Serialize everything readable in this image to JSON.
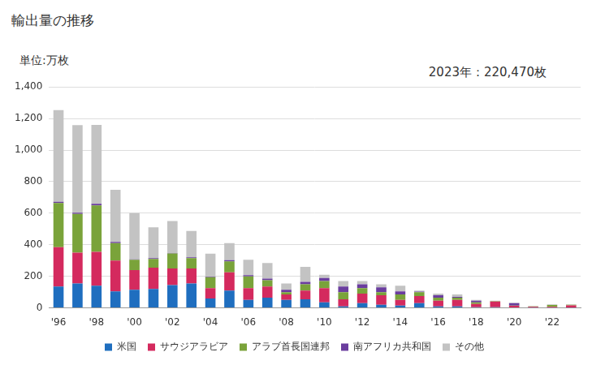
{
  "chart_data": {
    "type": "bar",
    "title": "輸出量の推移",
    "ylabel": "単位:万枚",
    "annotations": [
      "2023年：220,470枚"
    ],
    "categories": [
      "'96",
      null,
      "'98",
      null,
      "'00",
      null,
      "'02",
      null,
      "'04",
      null,
      "'06",
      null,
      "'08",
      null,
      "'10",
      null,
      "'12",
      null,
      "'14",
      null,
      "'16",
      null,
      "'18",
      null,
      "'20",
      null,
      "'22",
      null
    ],
    "series": [
      {
        "name": "米国",
        "color": "#1f6ebf",
        "values": [
          135,
          155,
          140,
          105,
          115,
          120,
          145,
          155,
          60,
          110,
          50,
          65,
          50,
          55,
          35,
          10,
          30,
          20,
          15,
          30,
          10,
          10,
          5,
          5,
          3,
          2,
          2,
          2
        ]
      },
      {
        "name": "サウジアラビア",
        "color": "#d42a5e",
        "values": [
          250,
          195,
          215,
          195,
          125,
          135,
          105,
          95,
          65,
          115,
          75,
          70,
          35,
          55,
          90,
          45,
          60,
          60,
          35,
          45,
          35,
          40,
          20,
          35,
          10,
          5,
          5,
          14
        ]
      },
      {
        "name": "アラブ首長国連邦",
        "color": "#7aa33a",
        "values": [
          280,
          245,
          295,
          110,
          65,
          55,
          95,
          65,
          70,
          70,
          75,
          40,
          15,
          40,
          45,
          45,
          35,
          20,
          35,
          25,
          20,
          15,
          10,
          3,
          2,
          3,
          12,
          4
        ]
      },
      {
        "name": "南アフリカ共和国",
        "color": "#6a3d9e",
        "values": [
          8,
          8,
          10,
          8,
          3,
          5,
          3,
          5,
          3,
          8,
          8,
          10,
          15,
          15,
          20,
          35,
          25,
          30,
          20,
          3,
          15,
          5,
          10,
          0,
          15,
          0,
          0,
          0
        ]
      },
      {
        "name": "その他",
        "color": "#c3c3c3",
        "values": [
          580,
          555,
          500,
          330,
          292,
          195,
          202,
          168,
          145,
          107,
          97,
          100,
          40,
          95,
          20,
          35,
          20,
          20,
          35,
          7,
          10,
          15,
          5,
          2,
          2,
          2,
          3,
          2
        ]
      }
    ],
    "ylim": [
      0,
      1400
    ],
    "yticks": [
      0,
      200,
      400,
      600,
      800,
      {
        "value": 1000,
        "label": "1,000"
      },
      {
        "value": 1200,
        "label": "1,200"
      },
      {
        "value": 1400,
        "label": "1,400"
      }
    ],
    "stacked": true,
    "grid": true,
    "legend": "bottom"
  }
}
